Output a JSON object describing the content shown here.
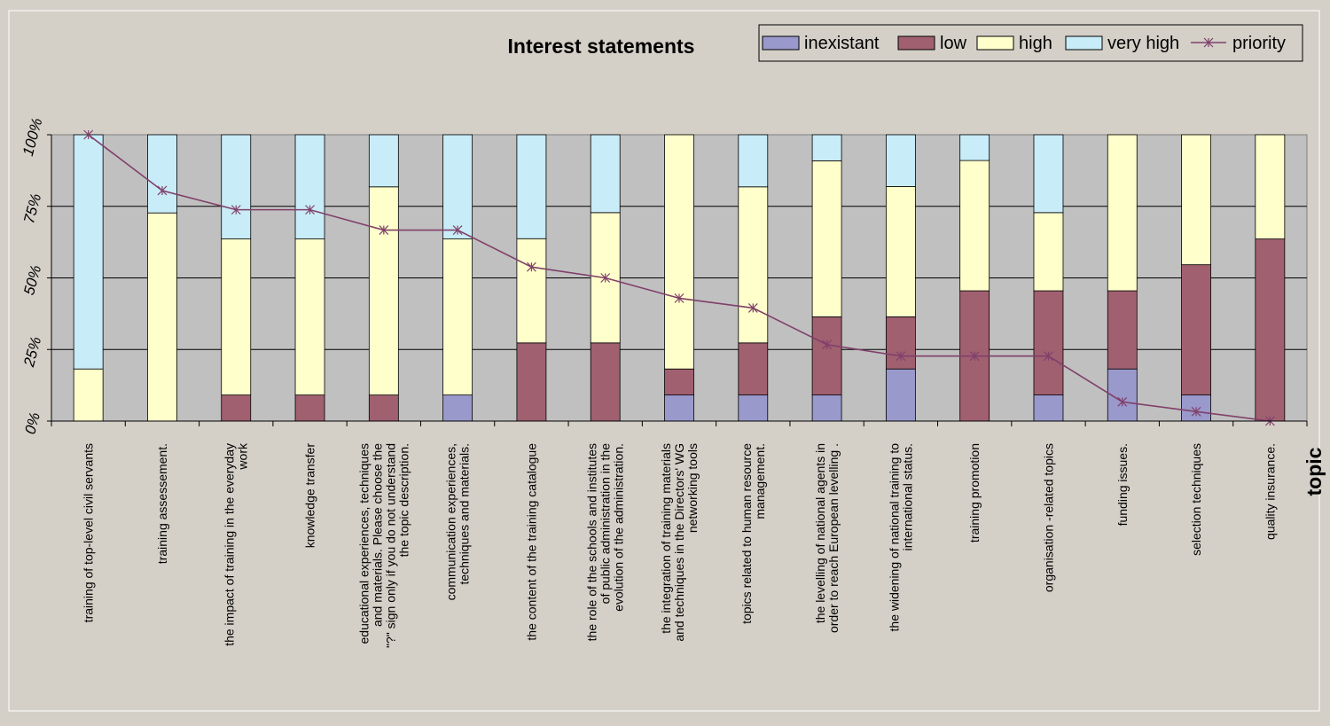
{
  "chart_data": {
    "type": "bar",
    "stacked": true,
    "title": "Interest statements",
    "xlabel": "topic",
    "ylabel": "",
    "ylim": [
      0,
      100
    ],
    "yticks": [
      "0%",
      "25%",
      "50%",
      "75%",
      "100%"
    ],
    "grid": true,
    "legend_position": "top-right",
    "categories": [
      "training of top-level civil servants",
      "training assessement.",
      "the impact of training in the everyday work",
      "knowledge transfer",
      "educational experiences, techniques and materials. Please choose the \"?\" sign only if you do not understand the topic description.",
      "communication experiences, techniques and materials.",
      "the content of the training catalogue",
      "the role of the schools and institutes of public administration in the evolution of the administration.",
      "the integration of training materials and techniques in the Directors' WG networking tools",
      "topics related to human resource management.",
      "the levelling of national agents in order to reach European levelling .",
      "the widening of national training to international status.",
      "training promotion",
      "organisation -related topics",
      "funding issues.",
      "selection techniques",
      "quality insurance."
    ],
    "category_lines": [
      [
        "training of top-level civil servants"
      ],
      [
        "training assessement."
      ],
      [
        "the impact of training in the everyday",
        "work"
      ],
      [
        "knowledge transfer"
      ],
      [
        "educational experiences, techniques",
        "and materials.  Please choose the",
        "\"?\" sign only if you do not understand",
        "the topic description."
      ],
      [
        "communication experiences,",
        "techniques and materials."
      ],
      [
        "the content of the training catalogue"
      ],
      [
        "the role of the schools and institutes",
        "of public administration in the",
        "evolution of the administration."
      ],
      [
        "the integration of training materials",
        "and techniques in the Directors' WG",
        "networking tools"
      ],
      [
        "topics related to human resource",
        "management."
      ],
      [
        "the levelling of national agents in",
        "order to reach European levelling ."
      ],
      [
        "the widening of national training to",
        "international status."
      ],
      [
        "training promotion"
      ],
      [
        "organisation -related topics"
      ],
      [
        "funding issues."
      ],
      [
        "selection techniques"
      ],
      [
        "quality insurance."
      ]
    ],
    "series": [
      {
        "name": "inexistant",
        "color": "#9999cc",
        "values": [
          0,
          0,
          0,
          0,
          0,
          9.1,
          0,
          0,
          9.1,
          9.1,
          9.1,
          18.2,
          0,
          9.1,
          18.2,
          9.1,
          0
        ]
      },
      {
        "name": "low",
        "color": "#a06070",
        "values": [
          0,
          0,
          9.1,
          9.1,
          9.1,
          0,
          27.3,
          27.3,
          9.1,
          18.2,
          27.3,
          18.2,
          45.5,
          36.4,
          27.3,
          45.5,
          63.6
        ]
      },
      {
        "name": "high",
        "color": "#ffffcc",
        "values": [
          18.2,
          72.7,
          54.5,
          54.5,
          72.7,
          54.5,
          36.4,
          45.5,
          81.8,
          54.5,
          54.5,
          45.5,
          45.5,
          27.3,
          54.5,
          45.4,
          36.4
        ]
      },
      {
        "name": "very high",
        "color": "#c8ecf8",
        "values": [
          81.8,
          27.3,
          36.4,
          36.4,
          18.2,
          36.4,
          36.3,
          27.2,
          0,
          18.2,
          9.1,
          18.1,
          9.0,
          27.2,
          0,
          0,
          0
        ]
      }
    ],
    "line_series": {
      "name": "priority",
      "color": "#80406a",
      "values": [
        100,
        80.5,
        73.8,
        73.8,
        66.7,
        66.7,
        53.8,
        50.0,
        42.9,
        39.5,
        26.7,
        22.7,
        22.7,
        22.7,
        6.7,
        3.3,
        0
      ]
    }
  }
}
